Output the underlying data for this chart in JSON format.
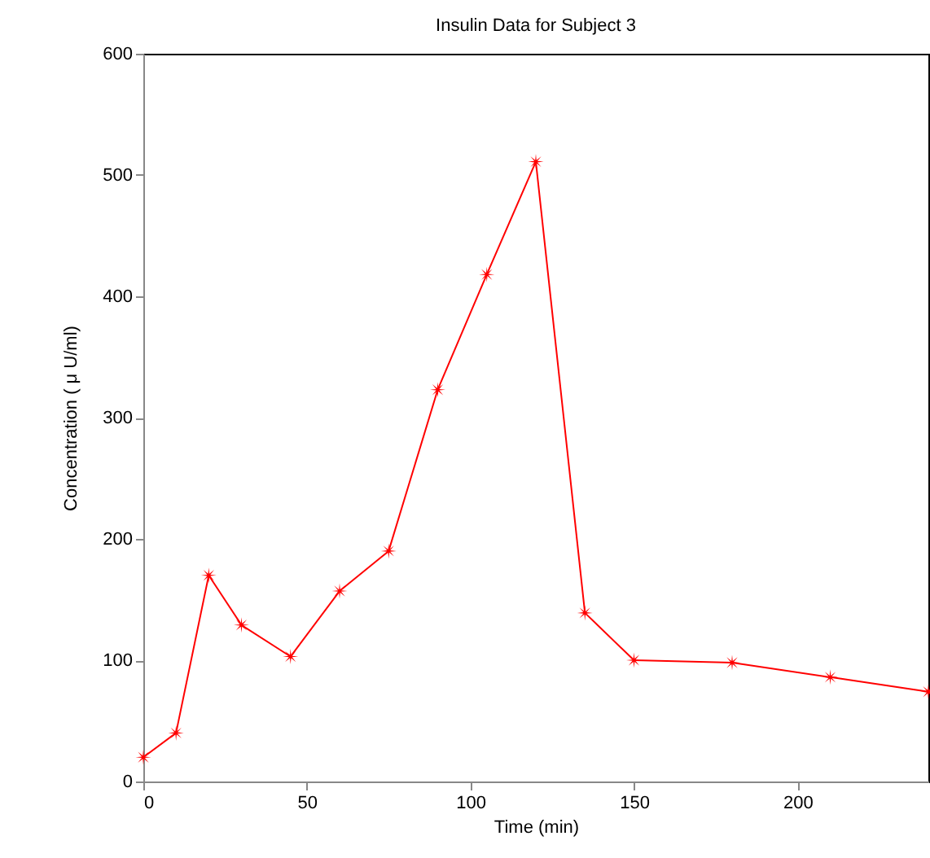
{
  "chart_data": {
    "type": "line",
    "title": "Insulin Data for Subject 3",
    "xlabel": "Time (min)",
    "ylabel": "Concentration ( μ U/ml)",
    "x": [
      0,
      10,
      20,
      30,
      45,
      60,
      75,
      90,
      105,
      120,
      135,
      150,
      180,
      210,
      240
    ],
    "series": [
      {
        "color": "#ff0000",
        "values": [
          20,
          40,
          170,
          129,
          103,
          157,
          190,
          323,
          418,
          511,
          139,
          100,
          98,
          86,
          74
        ]
      }
    ],
    "xlim": [
      0,
      240
    ],
    "xticks": [
      0,
      50,
      100,
      150,
      200
    ],
    "ylim": [
      0,
      600
    ],
    "yticks": [
      0,
      100,
      200,
      300,
      400,
      500,
      600
    ],
    "grid": false,
    "marker": "star",
    "line_style": "solid"
  }
}
